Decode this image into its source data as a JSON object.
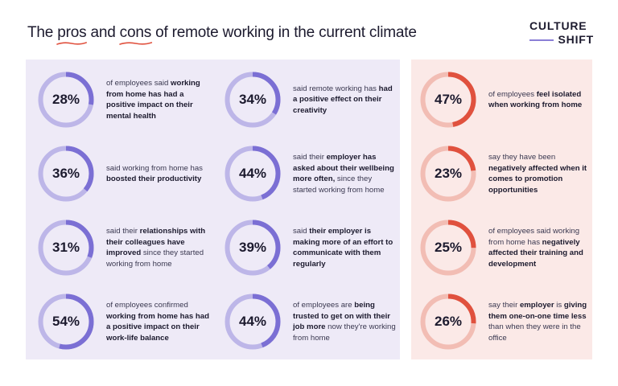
{
  "title": {
    "pre": "The ",
    "pros": "pros",
    "mid": " and ",
    "cons": "cons",
    "post": " of remote working in the current climate"
  },
  "logo": {
    "line1": "CULTURE",
    "line2": "SHIFT"
  },
  "colors": {
    "pros_ring": "#7b6fd4",
    "pros_track": "#bdb6e8",
    "cons_ring": "#e0513e",
    "cons_track": "#f2bdb4",
    "underline": "#e0513e"
  },
  "pros": [
    {
      "value": 28,
      "label": "28%",
      "parts": [
        [
          "of employees said ",
          false
        ],
        [
          "working from home has",
          true
        ],
        [
          " had a positive impact on their mental health",
          true
        ]
      ]
    },
    {
      "value": 36,
      "label": "36%",
      "parts": [
        [
          "said working from home has ",
          false
        ],
        [
          "boosted their productivity",
          true
        ]
      ]
    },
    {
      "value": 31,
      "label": "31%",
      "parts": [
        [
          "said their ",
          false
        ],
        [
          "relationships with their colleagues have improved",
          true
        ],
        [
          " since they started working from home",
          false
        ]
      ]
    },
    {
      "value": 54,
      "label": "54%",
      "parts": [
        [
          "of employees confirmed ",
          false
        ],
        [
          "working from home has had a positive impact on their work-life balance",
          true
        ]
      ]
    },
    {
      "value": 34,
      "label": "34%",
      "parts": [
        [
          "said remote working has ",
          false
        ],
        [
          "had a positive effect on their creativity",
          true
        ]
      ]
    },
    {
      "value": 44,
      "label": "44%",
      "parts": [
        [
          "said their ",
          false
        ],
        [
          "employer has asked about their wellbeing more often,",
          true
        ],
        [
          " since they started working from home",
          false
        ]
      ]
    },
    {
      "value": 39,
      "label": "39%",
      "parts": [
        [
          "said ",
          false
        ],
        [
          "their employer is making more of an effort to communicate with them regularly",
          true
        ]
      ]
    },
    {
      "value": 44,
      "label": "44%",
      "parts": [
        [
          "of employees are ",
          false
        ],
        [
          "being trusted to get on with their job more",
          true
        ],
        [
          " now they're working from home",
          false
        ]
      ]
    }
  ],
  "cons": [
    {
      "value": 47,
      "label": "47%",
      "parts": [
        [
          "of employees ",
          false
        ],
        [
          "feel isolated when working from home",
          true
        ]
      ]
    },
    {
      "value": 23,
      "label": "23%",
      "parts": [
        [
          "say they have been ",
          false
        ],
        [
          "negatively affected when it comes to promotion opportunities",
          true
        ]
      ]
    },
    {
      "value": 25,
      "label": "25%",
      "parts": [
        [
          "of employees said working from home has ",
          false
        ],
        [
          "negatively affected their training and development",
          true
        ]
      ]
    },
    {
      "value": 26,
      "label": "26%",
      "parts": [
        [
          "say their ",
          false
        ],
        [
          "employer",
          true
        ],
        [
          " is ",
          false
        ],
        [
          "giving them one-on-one time less",
          true
        ],
        [
          " than when they were in the office",
          false
        ]
      ]
    }
  ]
}
